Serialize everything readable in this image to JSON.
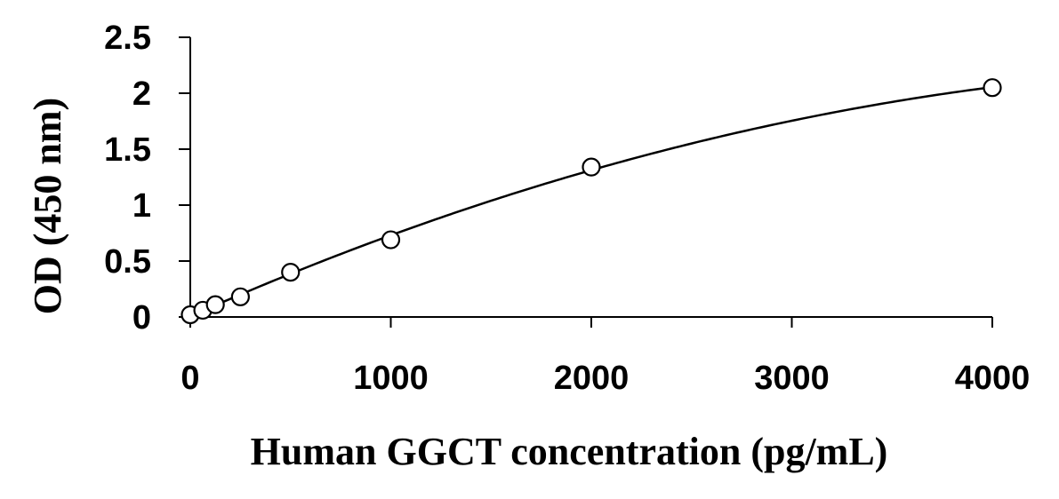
{
  "chart_data": {
    "type": "scatter",
    "xlabel": "Human GGCT concentration (pg/mL)",
    "ylabel": "OD (450 nm)",
    "xlim": [
      0,
      4000
    ],
    "ylim": [
      0,
      2.5
    ],
    "x_ticks": [
      0,
      1000,
      2000,
      3000,
      4000
    ],
    "y_ticks": [
      0,
      0.5,
      1,
      1.5,
      2,
      2.5
    ],
    "x_tick_labels": [
      "0",
      "1000",
      "2000",
      "3000",
      "4000"
    ],
    "y_tick_labels": [
      "0",
      "0.5",
      "1",
      "1.5",
      "2",
      "2.5"
    ],
    "grid": false,
    "marker": "open-circle",
    "trendline": "smooth-fit",
    "series": [
      {
        "x": [
          0,
          62.5,
          125,
          250,
          500,
          1000,
          2000,
          4000
        ],
        "y": [
          0.02,
          0.06,
          0.11,
          0.18,
          0.4,
          0.69,
          1.34,
          2.05
        ]
      }
    ],
    "colors": {
      "marker_stroke": "#000000",
      "marker_fill": "#ffffff",
      "line": "#000000"
    }
  }
}
